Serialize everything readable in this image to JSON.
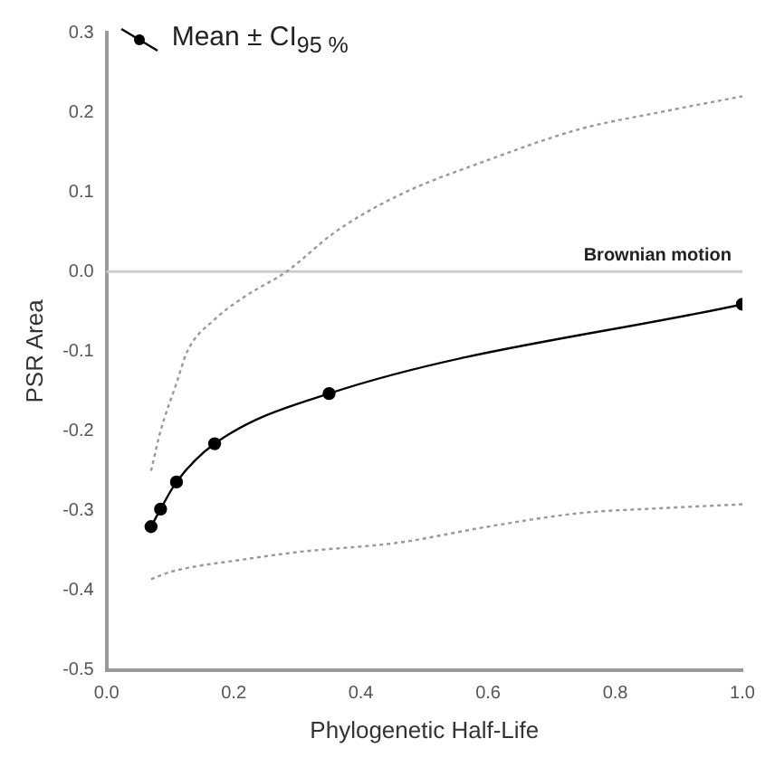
{
  "chart_data": {
    "type": "line",
    "xlabel": "Phylogenetic Half-Life",
    "ylabel": "PSR Area",
    "xlim": [
      0,
      1
    ],
    "xticks": [
      {
        "value": 0,
        "label": "0.0"
      },
      0.2,
      0.4,
      0.6,
      0.8,
      {
        "value": 1,
        "label": "1.0"
      }
    ],
    "ylim": [
      -0.5,
      0.3
    ],
    "yticks": [
      -0.5,
      -0.4,
      -0.3,
      -0.2,
      -0.1,
      {
        "value": 0,
        "label": "0.0"
      },
      0.1,
      0.2,
      0.3
    ],
    "grid": false,
    "legend": "top left",
    "series": [
      {
        "name": "Mean ± CI$_{95 %}$",
        "color": "#000000",
        "marker": "circle",
        "line_style": "solid",
        "x": [
          0.07,
          0.085,
          0.11,
          0.17,
          0.35,
          1.0
        ],
        "values": [
          -0.32,
          -0.298,
          -0.264,
          -0.216,
          -0.153,
          -0.041
        ]
      },
      {
        "color": "#999999",
        "marker": "none",
        "line_style": "dotted",
        "x": [
          0.07,
          0.085,
          0.11,
          0.127,
          0.17,
          0.22,
          0.283,
          0.36,
          0.46,
          0.6,
          0.745,
          0.87,
          1.0
        ],
        "values": [
          -0.25,
          -0.2,
          -0.14,
          -0.1,
          -0.06,
          -0.03,
          0,
          0.05,
          0.096,
          0.14,
          0.179,
          0.2,
          0.22
        ]
      },
      {
        "color": "#999999",
        "marker": "none",
        "line_style": "dotted",
        "x": [
          0.07,
          0.1,
          0.14,
          0.2,
          0.3,
          0.46,
          0.6,
          0.745,
          0.87,
          1.0
        ],
        "values": [
          -0.386,
          -0.377,
          -0.37,
          -0.363,
          -0.352,
          -0.34,
          -0.32,
          -0.303,
          -0.297,
          -0.292
        ]
      }
    ],
    "ref_lines": [
      {
        "axis": "y",
        "value": 0,
        "label": "Brownian motion",
        "color": "#cccccc"
      }
    ]
  }
}
